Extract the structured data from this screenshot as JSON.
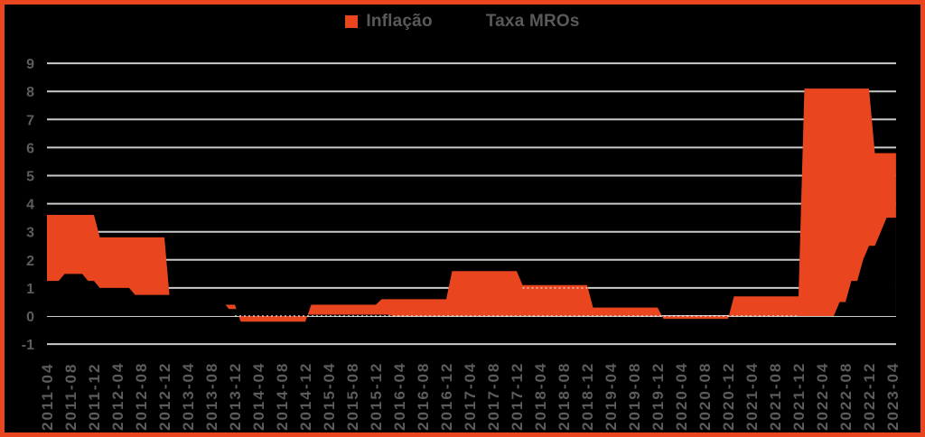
{
  "legend": {
    "items": [
      {
        "label": "Inflação",
        "marker": "square",
        "marker_color": "#E9461F"
      },
      {
        "label": "Taxa MROs",
        "marker": "square",
        "marker_color": "#000000"
      }
    ],
    "text_color": "#595959"
  },
  "colors": {
    "background": "#000000",
    "frame": "#E9461F",
    "gridline": "#C9C9C9",
    "axis_text": "#5c5c5c",
    "dashed_overlay": "#E6E6E6"
  },
  "chart_data": {
    "type": "area",
    "title": "",
    "xlabel": "",
    "ylabel": "",
    "ylim": [
      -1,
      9
    ],
    "y_ticks": [
      9,
      8,
      7,
      6,
      5,
      4,
      3,
      2,
      1,
      0,
      -1
    ],
    "grid": true,
    "legend_position": "top-center",
    "x_axis": {
      "start": "2011-04",
      "end": "2023-04",
      "tick_every_months": 4,
      "range_months": [
        0,
        144
      ]
    },
    "x_tick_labels": [
      "2011-04",
      "2011-08",
      "2011-12",
      "2012-04",
      "2012-08",
      "2012-12",
      "2013-04",
      "2013-08",
      "2013-12",
      "2014-04",
      "2014-08",
      "2014-12",
      "2015-04",
      "2015-08",
      "2015-12",
      "2016-04",
      "2016-08",
      "2016-12",
      "2017-04",
      "2017-08",
      "2017-12",
      "2018-04",
      "2018-08",
      "2018-12",
      "2019-04",
      "2019-08",
      "2019-12",
      "2020-04",
      "2020-08",
      "2020-12",
      "2021-04",
      "2021-08",
      "2021-12",
      "2022-04",
      "2022-08",
      "2022-12",
      "2023-04"
    ],
    "series": [
      {
        "name": "Inflação",
        "color": "#E9461F",
        "tick_values": [
          3.6,
          3.6,
          3.6,
          2.8,
          2.8,
          2.8,
          0.4,
          0.4,
          0.4,
          -0.2,
          -0.2,
          -0.2,
          0.4,
          0.4,
          0.4,
          0.6,
          0.6,
          0.6,
          1.6,
          1.6,
          1.6,
          1.1,
          1.1,
          1.1,
          0.3,
          0.3,
          0.3,
          -0.1,
          -0.1,
          -0.1,
          0.7,
          0.7,
          0.7,
          8.1,
          8.1,
          8.1,
          5.8
        ],
        "breakpoints_monthly": [
          [
            0,
            3.6
          ],
          [
            8,
            3.6
          ],
          [
            9,
            2.8
          ],
          [
            20,
            2.8
          ],
          [
            21,
            0.4
          ],
          [
            32,
            0.4
          ],
          [
            33,
            -0.2
          ],
          [
            44,
            -0.2
          ],
          [
            45,
            0.4
          ],
          [
            56,
            0.4
          ],
          [
            57,
            0.6
          ],
          [
            68,
            0.6
          ],
          [
            69,
            1.6
          ],
          [
            80,
            1.6
          ],
          [
            81,
            1.1
          ],
          [
            92,
            1.1
          ],
          [
            93,
            0.3
          ],
          [
            104,
            0.3
          ],
          [
            105,
            -0.1
          ],
          [
            116,
            -0.1
          ],
          [
            117,
            0.7
          ],
          [
            128,
            0.7
          ],
          [
            129,
            8.1
          ],
          [
            140,
            8.1
          ],
          [
            141,
            5.8
          ],
          [
            144.6,
            5.8
          ]
        ]
      },
      {
        "name": "Taxa MROs",
        "color": "#000000",
        "tick_values": [
          1.25,
          1.5,
          1.0,
          1.0,
          0.75,
          0.75,
          0.75,
          0.5,
          0.25,
          0.25,
          0.15,
          0.05,
          0.05,
          0.05,
          0.05,
          0,
          0,
          0,
          0,
          0,
          0,
          0,
          0,
          0,
          0,
          0,
          0,
          0,
          0,
          0,
          0,
          0,
          0,
          0,
          0.5,
          2.5,
          3.5
        ],
        "breakpoints_monthly": [
          [
            0,
            1.25
          ],
          [
            2,
            1.25
          ],
          [
            3,
            1.5
          ],
          [
            6,
            1.5
          ],
          [
            7,
            1.25
          ],
          [
            8,
            1.25
          ],
          [
            9,
            1.0
          ],
          [
            14,
            1.0
          ],
          [
            15,
            0.75
          ],
          [
            24,
            0.75
          ],
          [
            25,
            0.5
          ],
          [
            30,
            0.5
          ],
          [
            31,
            0.25
          ],
          [
            37,
            0.25
          ],
          [
            38,
            0.15
          ],
          [
            40,
            0.15
          ],
          [
            41,
            0.05
          ],
          [
            58,
            0.05
          ],
          [
            59,
            0
          ],
          [
            134,
            0
          ],
          [
            135,
            0.5
          ],
          [
            136,
            0.5
          ],
          [
            137,
            1.25
          ],
          [
            138,
            1.25
          ],
          [
            139,
            2.0
          ],
          [
            140,
            2.5
          ],
          [
            141,
            2.5
          ],
          [
            142,
            3.0
          ],
          [
            143,
            3.5
          ],
          [
            144.6,
            3.5
          ]
        ]
      }
    ],
    "overlay_dashes": [
      {
        "value": 0,
        "from_month": 32,
        "to_month": 128
      },
      {
        "value": 1,
        "from_month": 81,
        "to_month": 92
      }
    ]
  }
}
